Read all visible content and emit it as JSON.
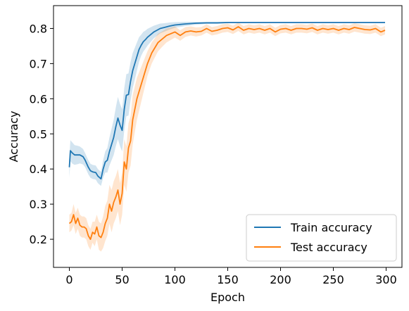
{
  "chart_data": {
    "type": "line",
    "title": "",
    "xlabel": "Epoch",
    "ylabel": "Accuracy",
    "xlim": [
      -15,
      315
    ],
    "ylim": [
      0.12,
      0.865
    ],
    "xticks": [
      0,
      50,
      100,
      150,
      200,
      250,
      300
    ],
    "yticks": [
      0.2,
      0.3,
      0.4,
      0.5,
      0.6,
      0.7,
      0.8
    ],
    "grid": false,
    "legend_position": "lower-right",
    "series": [
      {
        "name": "Train accuracy",
        "color": "#1f77b4",
        "band_color": "#1f77b4",
        "x": [
          0,
          1,
          3,
          5,
          8,
          10,
          13,
          15,
          18,
          20,
          22,
          25,
          27,
          30,
          32,
          34,
          36,
          38,
          40,
          42,
          44,
          46,
          48,
          50,
          52,
          54,
          56,
          58,
          60,
          62,
          64,
          66,
          68,
          70,
          72,
          74,
          76,
          78,
          80,
          83,
          86,
          90,
          95,
          100,
          110,
          120,
          130,
          140,
          150,
          175,
          200,
          225,
          250,
          275,
          299
        ],
        "y": [
          0.405,
          0.452,
          0.445,
          0.44,
          0.44,
          0.44,
          0.435,
          0.425,
          0.405,
          0.395,
          0.392,
          0.39,
          0.38,
          0.372,
          0.4,
          0.42,
          0.425,
          0.45,
          0.47,
          0.49,
          0.52,
          0.545,
          0.525,
          0.51,
          0.57,
          0.61,
          0.612,
          0.65,
          0.68,
          0.7,
          0.72,
          0.74,
          0.752,
          0.762,
          0.768,
          0.775,
          0.78,
          0.785,
          0.79,
          0.795,
          0.8,
          0.803,
          0.807,
          0.81,
          0.813,
          0.815,
          0.816,
          0.816,
          0.817,
          0.817,
          0.817,
          0.817,
          0.817,
          0.817,
          0.817
        ],
        "band_halfwidth": [
          0.03,
          0.03,
          0.03,
          0.028,
          0.026,
          0.024,
          0.022,
          0.02,
          0.02,
          0.02,
          0.02,
          0.02,
          0.02,
          0.02,
          0.025,
          0.03,
          0.035,
          0.04,
          0.045,
          0.05,
          0.055,
          0.06,
          0.06,
          0.06,
          0.06,
          0.06,
          0.06,
          0.055,
          0.05,
          0.045,
          0.04,
          0.035,
          0.03,
          0.028,
          0.026,
          0.024,
          0.022,
          0.02,
          0.018,
          0.016,
          0.014,
          0.012,
          0.01,
          0.008,
          0.006,
          0.004,
          0.003,
          0.003,
          0.002,
          0.002,
          0.002,
          0.002,
          0.002,
          0.002,
          0.002
        ]
      },
      {
        "name": "Test accuracy",
        "color": "#ff7f0e",
        "band_color": "#ff7f0e",
        "x": [
          0,
          2,
          4,
          6,
          8,
          10,
          12,
          14,
          16,
          18,
          20,
          22,
          24,
          26,
          28,
          30,
          32,
          34,
          36,
          38,
          40,
          42,
          44,
          46,
          48,
          50,
          52,
          54,
          56,
          58,
          60,
          62,
          64,
          66,
          68,
          70,
          72,
          74,
          76,
          78,
          80,
          84,
          88,
          92,
          96,
          100,
          105,
          110,
          115,
          120,
          125,
          130,
          135,
          140,
          145,
          150,
          155,
          160,
          165,
          170,
          175,
          180,
          185,
          190,
          195,
          200,
          205,
          210,
          215,
          220,
          225,
          230,
          235,
          240,
          245,
          250,
          255,
          260,
          265,
          270,
          275,
          280,
          285,
          290,
          295,
          299
        ],
        "y": [
          0.245,
          0.25,
          0.27,
          0.245,
          0.26,
          0.24,
          0.235,
          0.235,
          0.23,
          0.21,
          0.2,
          0.22,
          0.215,
          0.235,
          0.21,
          0.205,
          0.22,
          0.245,
          0.26,
          0.3,
          0.28,
          0.305,
          0.32,
          0.34,
          0.3,
          0.33,
          0.42,
          0.4,
          0.46,
          0.48,
          0.54,
          0.57,
          0.6,
          0.62,
          0.64,
          0.66,
          0.68,
          0.7,
          0.715,
          0.73,
          0.74,
          0.76,
          0.77,
          0.78,
          0.785,
          0.79,
          0.78,
          0.79,
          0.793,
          0.79,
          0.792,
          0.8,
          0.792,
          0.795,
          0.8,
          0.802,
          0.796,
          0.805,
          0.795,
          0.8,
          0.797,
          0.8,
          0.795,
          0.8,
          0.79,
          0.798,
          0.8,
          0.795,
          0.8,
          0.8,
          0.798,
          0.802,
          0.795,
          0.8,
          0.797,
          0.8,
          0.795,
          0.8,
          0.797,
          0.803,
          0.8,
          0.797,
          0.796,
          0.8,
          0.79,
          0.795
        ],
        "band_halfwidth": [
          0.025,
          0.025,
          0.03,
          0.03,
          0.03,
          0.03,
          0.03,
          0.03,
          0.03,
          0.03,
          0.03,
          0.03,
          0.035,
          0.035,
          0.04,
          0.04,
          0.045,
          0.05,
          0.05,
          0.055,
          0.06,
          0.06,
          0.06,
          0.06,
          0.06,
          0.06,
          0.065,
          0.065,
          0.07,
          0.07,
          0.07,
          0.065,
          0.06,
          0.055,
          0.05,
          0.045,
          0.04,
          0.035,
          0.032,
          0.03,
          0.028,
          0.025,
          0.022,
          0.02,
          0.018,
          0.016,
          0.015,
          0.014,
          0.013,
          0.013,
          0.012,
          0.012,
          0.012,
          0.012,
          0.012,
          0.012,
          0.012,
          0.012,
          0.012,
          0.012,
          0.012,
          0.012,
          0.012,
          0.012,
          0.012,
          0.012,
          0.012,
          0.012,
          0.012,
          0.012,
          0.012,
          0.012,
          0.012,
          0.012,
          0.012,
          0.012,
          0.012,
          0.012,
          0.012,
          0.012,
          0.012,
          0.012,
          0.012,
          0.012,
          0.012,
          0.012
        ]
      }
    ]
  }
}
